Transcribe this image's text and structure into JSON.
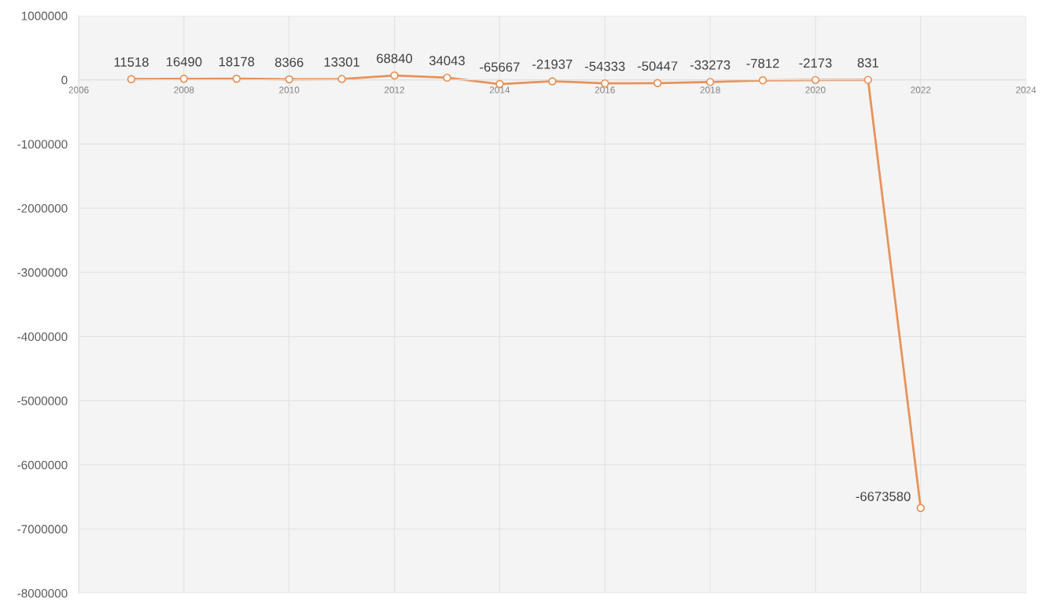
{
  "chart_data": {
    "type": "line",
    "x": [
      2007,
      2008,
      2009,
      2010,
      2011,
      2012,
      2013,
      2014,
      2015,
      2016,
      2017,
      2018,
      2019,
      2020,
      2021,
      2022
    ],
    "series": [
      {
        "color": "#e8925a",
        "values": [
          11518,
          16490,
          18178,
          8366,
          13301,
          68840,
          34043,
          -65667,
          -21937,
          -54333,
          -50447,
          -33273,
          -7812,
          -2173,
          831,
          -6673580
        ]
      }
    ],
    "xlim": [
      2006,
      2024
    ],
    "xticks": [
      2006,
      2008,
      2010,
      2012,
      2014,
      2016,
      2018,
      2020,
      2022,
      2024
    ],
    "ylim": [
      -8000000,
      1000000
    ],
    "yticks": [
      -8000000,
      -7000000,
      -6000000,
      -5000000,
      -4000000,
      -3000000,
      -2000000,
      -1000000,
      0,
      1000000
    ],
    "grid": true,
    "marker": "circle",
    "line_style": "solid",
    "data_labels": true
  }
}
